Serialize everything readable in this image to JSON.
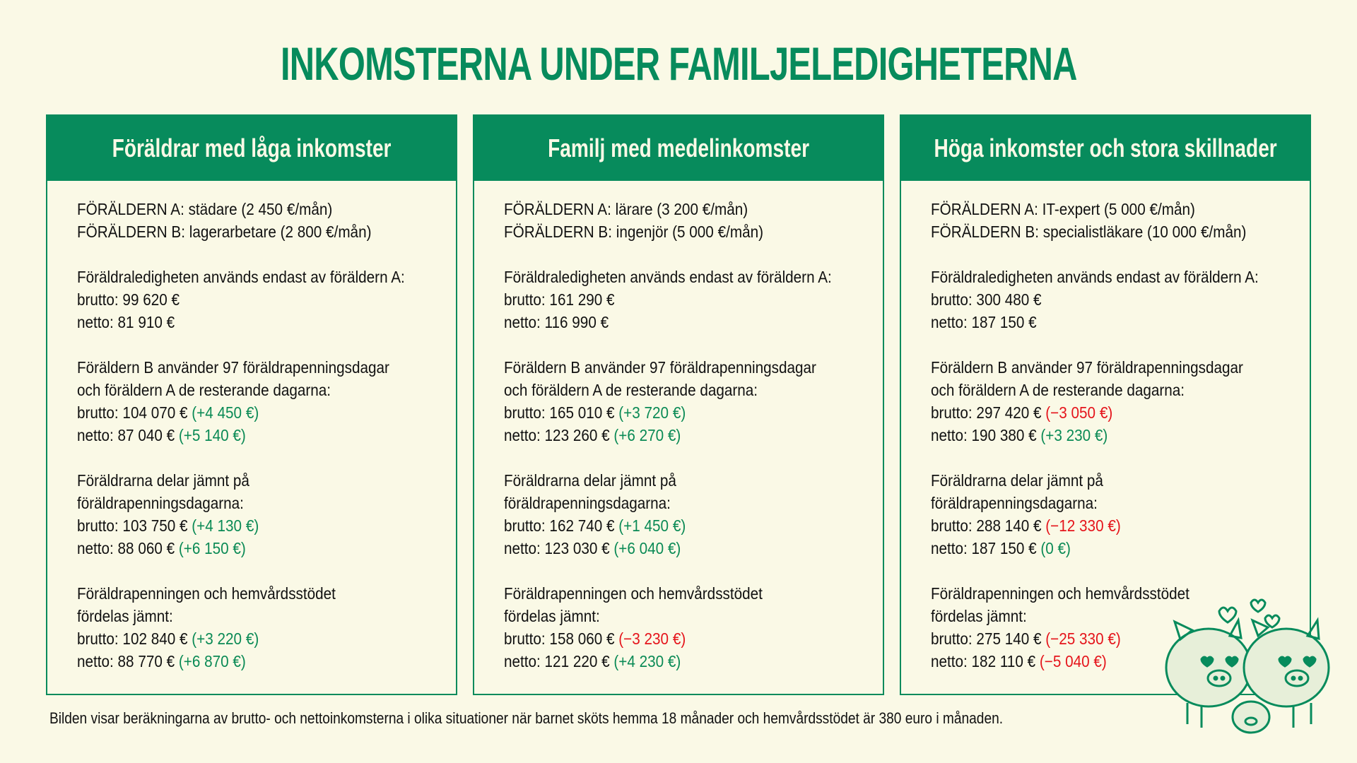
{
  "title": "INKOMSTERNA UNDER FAMILJELEDIGHETERNA",
  "colors": {
    "accent": "#078b5c",
    "background": "#faf9e6",
    "positive": "#0a8a55",
    "negative": "#e5141b"
  },
  "columns": [
    {
      "title": "Föräldrar med låga inkomster",
      "parent_a": "FÖRÄLDERN A: städare (2 450 €/mån)",
      "parent_b": "FÖRÄLDERN B: lagerarbetare (2 800 €/mån)",
      "scenarios": [
        {
          "heading": [
            "Föräldraledigheten används endast av föräldern A:"
          ],
          "brutto": "brutto: 99 620 €",
          "brutto_diff": "",
          "brutto_sign": "",
          "netto": "netto: 81 910 €",
          "netto_diff": "",
          "netto_sign": ""
        },
        {
          "heading": [
            "Föräldern B använder 97 föräldrapenningsdagar",
            "och föräldern A de resterande dagarna:"
          ],
          "brutto": "brutto: 104 070 €",
          "brutto_diff": "(+4 450 €)",
          "brutto_sign": "pos",
          "netto": "netto: 87 040 €",
          "netto_diff": "(+5 140 €)",
          "netto_sign": "pos"
        },
        {
          "heading": [
            "Föräldrarna delar jämnt på",
            "föräldrapenningsdagarna:"
          ],
          "brutto": "brutto: 103 750 €",
          "brutto_diff": "(+4 130 €)",
          "brutto_sign": "pos",
          "netto": "netto: 88 060 €",
          "netto_diff": "(+6 150 €)",
          "netto_sign": "pos"
        },
        {
          "heading": [
            "Föräldrapenningen och hemvårdsstödet",
            "fördelas jämnt:"
          ],
          "brutto": "brutto: 102 840 €",
          "brutto_diff": "(+3 220 €)",
          "brutto_sign": "pos",
          "netto": "netto: 88 770 €",
          "netto_diff": "(+6 870 €)",
          "netto_sign": "pos"
        }
      ]
    },
    {
      "title": "Familj med medelinkomster",
      "parent_a": "FÖRÄLDERN A: lärare (3 200 €/mån)",
      "parent_b": "FÖRÄLDERN B: ingenjör (5 000 €/mån)",
      "scenarios": [
        {
          "heading": [
            "Föräldraledigheten används endast av föräldern A:"
          ],
          "brutto": "brutto: 161 290 €",
          "brutto_diff": "",
          "brutto_sign": "",
          "netto": "netto: 116 990 €",
          "netto_diff": "",
          "netto_sign": ""
        },
        {
          "heading": [
            "Föräldern B använder 97 föräldrapenningsdagar",
            "och föräldern A de resterande dagarna:"
          ],
          "brutto": "brutto: 165 010 €",
          "brutto_diff": "(+3 720 €)",
          "brutto_sign": "pos",
          "netto": "netto: 123 260 €",
          "netto_diff": "(+6 270 €)",
          "netto_sign": "pos"
        },
        {
          "heading": [
            "Föräldrarna delar jämnt på",
            "föräldrapenningsdagarna:"
          ],
          "brutto": "brutto: 162 740 €",
          "brutto_diff": "(+1 450 €)",
          "brutto_sign": "pos",
          "netto": "netto: 123 030 €",
          "netto_diff": "(+6 040 €)",
          "netto_sign": "pos"
        },
        {
          "heading": [
            "Föräldrapenningen och hemvårdsstödet",
            "fördelas jämnt:"
          ],
          "brutto": "brutto: 158 060 €",
          "brutto_diff": "(−3 230 €)",
          "brutto_sign": "neg",
          "netto": "netto: 121 220 €",
          "netto_diff": "(+4 230 €)",
          "netto_sign": "pos"
        }
      ]
    },
    {
      "title": "Höga inkomster och stora skillnader",
      "parent_a": "FÖRÄLDERN A: IT-expert (5 000 €/mån)",
      "parent_b": "FÖRÄLDERN B: specialistläkare (10 000 €/mån)",
      "scenarios": [
        {
          "heading": [
            "Föräldraledigheten används endast av föräldern A:"
          ],
          "brutto": "brutto: 300 480 €",
          "brutto_diff": "",
          "brutto_sign": "",
          "netto": "netto: 187 150 €",
          "netto_diff": "",
          "netto_sign": ""
        },
        {
          "heading": [
            "Föräldern B använder 97 föräldrapenningsdagar",
            "och föräldern A de resterande dagarna:"
          ],
          "brutto": "brutto: 297 420 €",
          "brutto_diff": "(−3 050 €)",
          "brutto_sign": "neg",
          "netto": "netto: 190 380 €",
          "netto_diff": "(+3 230 €)",
          "netto_sign": "pos"
        },
        {
          "heading": [
            "Föräldrarna delar jämnt på",
            "föräldrapenningsdagarna:"
          ],
          "brutto": "brutto: 288 140 €",
          "brutto_diff": "(−12 330 €)",
          "brutto_sign": "neg",
          "netto": "netto: 187 150 €",
          "netto_diff": "(0 €)",
          "netto_sign": "pos"
        },
        {
          "heading": [
            "Föräldrapenningen och hemvårdsstödet",
            "fördelas jämnt:"
          ],
          "brutto": "brutto: 275 140 €",
          "brutto_diff": "(−25 330 €)",
          "brutto_sign": "neg",
          "netto": "netto: 182 110 €",
          "netto_diff": "(−5 040 €)",
          "netto_sign": "neg"
        }
      ]
    }
  ],
  "footnote": "Bilden visar beräkningarna av brutto- och nettoinkomsterna i olika situationer när barnet sköts hemma 18 månader och hemvårdsstödet är 380 euro i månaden.",
  "illustration": "piggy-bank-family-icon"
}
